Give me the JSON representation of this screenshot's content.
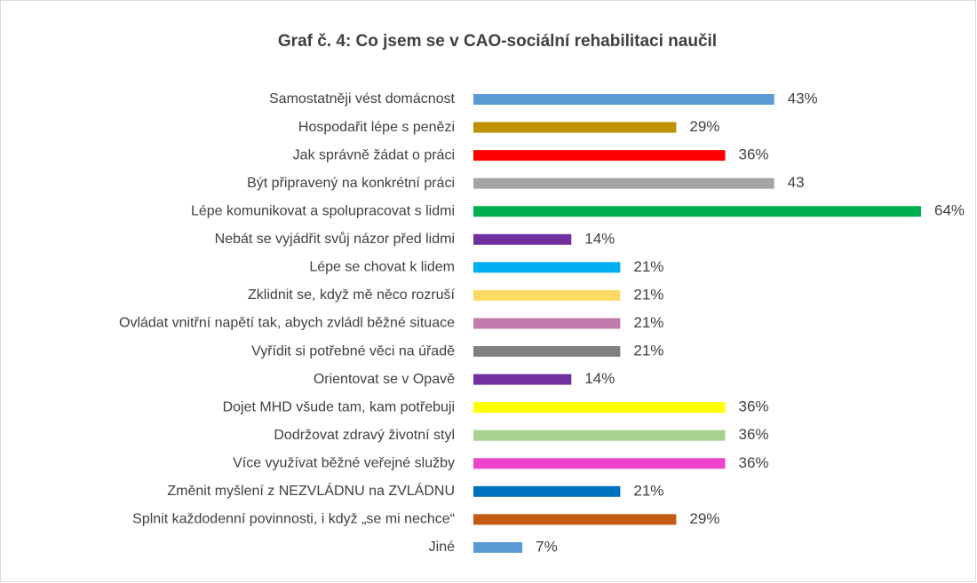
{
  "chart_data": {
    "type": "bar",
    "orientation": "horizontal",
    "title": "Graf č. 4: Co jsem se v CAO-sociální rehabilitaci naučil",
    "categories": [
      "Samostatněji vést domácnost",
      "Hospodařit lépe s penězi",
      "Jak správně žádat o práci",
      "Být připravený na konkrétní práci",
      "Lépe komunikovat a spolupracovat s lidmi",
      "Nebát se vyjádřit svůj názor před lidmi",
      "Lépe se chovat k lidem",
      "Zklidnit se, když mě něco rozruší",
      "Ovládat vnitřní napětí tak, abych zvládl běžné situace",
      "Vyřídit si potřebné věci na úřadě",
      "Orientovat se v Opavě",
      "Dojet MHD všude tam, kam potřebuji",
      "Dodržovat zdravý životní styl",
      "Více využívat běžné veřejné služby",
      "Změnit myšlení z NEZVLÁDNU na ZVLÁDNU",
      "Splnit každodenní povinnosti, i když „se mi nechce“",
      "Jiné"
    ],
    "values": [
      43,
      29,
      36,
      43,
      64,
      14,
      21,
      21,
      21,
      21,
      14,
      36,
      36,
      36,
      21,
      29,
      7
    ],
    "value_labels": [
      "43%",
      "29%",
      "36%",
      "43",
      "64%",
      "14%",
      "21%",
      "21%",
      "21%",
      "21%",
      "14%",
      "36%",
      "36%",
      "36%",
      "21%",
      "29%",
      "7%"
    ],
    "colors": [
      "#5b9bd5",
      "#bf9000",
      "#ff0000",
      "#a5a5a5",
      "#00b050",
      "#7030a0",
      "#00b0f0",
      "#ffd966",
      "#c27bab",
      "#808080",
      "#7030a0",
      "#ffff00",
      "#a9d18e",
      "#ee44cc",
      "#0070c0",
      "#c55a11",
      "#5b9bd5"
    ]
  }
}
